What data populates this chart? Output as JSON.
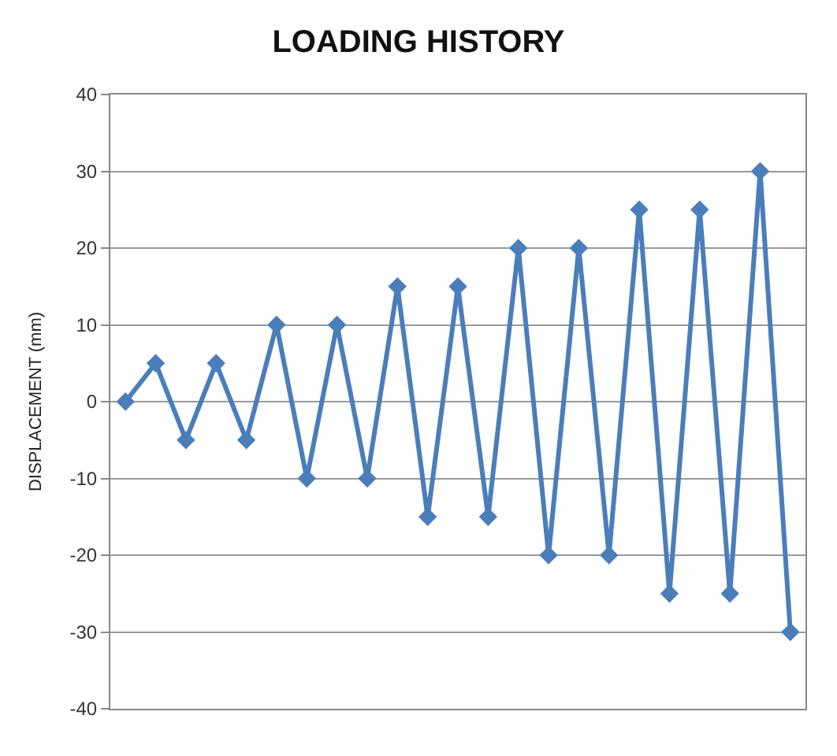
{
  "chart_data": {
    "type": "line",
    "title": "LOADING HISTORY",
    "ylabel": "DISPLACEMENT (mm)",
    "categories": [
      null,
      null,
      null,
      null,
      null,
      null,
      null,
      null,
      null,
      null,
      null,
      null,
      null,
      null,
      null,
      null,
      null,
      null,
      null,
      null,
      null,
      null,
      null
    ],
    "series": [
      {
        "color": "#4a7ebb",
        "values": [
          0,
          5,
          -5,
          5,
          -5,
          10,
          -10,
          10,
          -10,
          15,
          -15,
          15,
          -15,
          20,
          -20,
          20,
          -20,
          25,
          -25,
          25,
          -25,
          30,
          -30
        ]
      }
    ],
    "ylim": [
      -40,
      40
    ],
    "yticks": [
      -40,
      -30,
      -20,
      -10,
      0,
      10,
      20,
      30,
      40
    ],
    "grid": "y",
    "marker": "diamond",
    "line_style": "solid",
    "tick_labels": "y",
    "legend": false
  }
}
